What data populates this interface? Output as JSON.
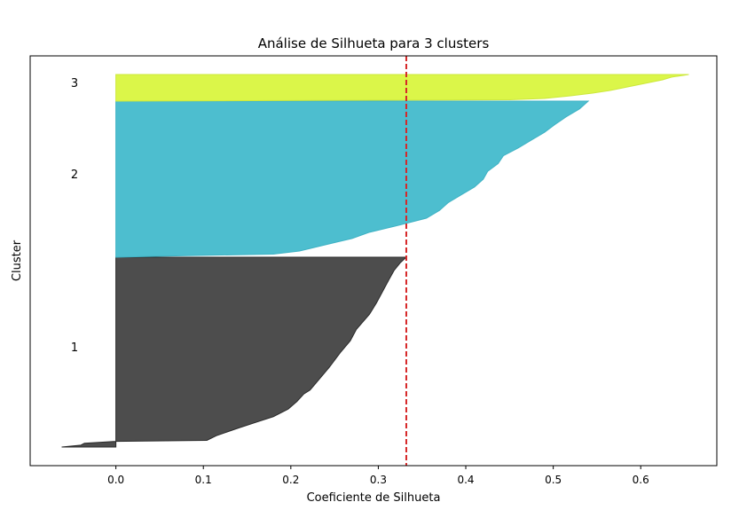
{
  "chart_data": {
    "type": "area",
    "title": "Análise de Silhueta para 3 clusters",
    "xlabel": "Coeficiente de Silhueta",
    "ylabel": "Cluster",
    "xlim": [
      -0.098,
      0.687
    ],
    "x_ticks": [
      0.0,
      0.1,
      0.2,
      0.3,
      0.4,
      0.5,
      0.6
    ],
    "x_tick_labels": [
      "0.0",
      "0.1",
      "0.2",
      "0.3",
      "0.4",
      "0.5",
      "0.6"
    ],
    "grid": false,
    "average_silhouette": 0.332,
    "average_line_color": "#d62728",
    "clusters": [
      {
        "label": "1",
        "color": "#4d4d4d",
        "edge_color": "#2a2a2a",
        "profile": [
          [
            0.0,
            -0.062
          ],
          [
            0.01,
            -0.04
          ],
          [
            0.02,
            -0.036
          ],
          [
            0.03,
            0.0
          ],
          [
            0.035,
            0.104
          ],
          [
            0.06,
            0.115
          ],
          [
            0.1,
            0.14
          ],
          [
            0.13,
            0.16
          ],
          [
            0.16,
            0.18
          ],
          [
            0.2,
            0.197
          ],
          [
            0.24,
            0.207
          ],
          [
            0.28,
            0.215
          ],
          [
            0.3,
            0.222
          ],
          [
            0.36,
            0.233
          ],
          [
            0.42,
            0.244
          ],
          [
            0.5,
            0.257
          ],
          [
            0.56,
            0.268
          ],
          [
            0.62,
            0.275
          ],
          [
            0.7,
            0.29
          ],
          [
            0.76,
            0.298
          ],
          [
            0.82,
            0.305
          ],
          [
            0.88,
            0.312
          ],
          [
            0.93,
            0.318
          ],
          [
            0.97,
            0.325
          ],
          [
            1.0,
            0.332
          ]
        ]
      },
      {
        "label": "2",
        "color": "#4dbecf",
        "edge_color": "#3fb2c4",
        "profile": [
          [
            0.0,
            0.0
          ],
          [
            0.01,
            0.08
          ],
          [
            0.02,
            0.18
          ],
          [
            0.04,
            0.21
          ],
          [
            0.08,
            0.24
          ],
          [
            0.12,
            0.27
          ],
          [
            0.16,
            0.29
          ],
          [
            0.2,
            0.32
          ],
          [
            0.25,
            0.355
          ],
          [
            0.3,
            0.37
          ],
          [
            0.35,
            0.38
          ],
          [
            0.4,
            0.395
          ],
          [
            0.45,
            0.41
          ],
          [
            0.5,
            0.42
          ],
          [
            0.55,
            0.425
          ],
          [
            0.6,
            0.437
          ],
          [
            0.65,
            0.443
          ],
          [
            0.7,
            0.46
          ],
          [
            0.75,
            0.475
          ],
          [
            0.8,
            0.49
          ],
          [
            0.85,
            0.502
          ],
          [
            0.9,
            0.515
          ],
          [
            0.95,
            0.53
          ],
          [
            1.0,
            0.54
          ]
        ]
      },
      {
        "label": "3",
        "color": "#dbf649",
        "edge_color": "#cde83c",
        "profile": [
          [
            0.0,
            0.0
          ],
          [
            0.05,
            0.45
          ],
          [
            0.1,
            0.49
          ],
          [
            0.2,
            0.52
          ],
          [
            0.3,
            0.545
          ],
          [
            0.4,
            0.565
          ],
          [
            0.5,
            0.58
          ],
          [
            0.6,
            0.595
          ],
          [
            0.7,
            0.61
          ],
          [
            0.8,
            0.625
          ],
          [
            0.9,
            0.635
          ],
          [
            1.0,
            0.655
          ]
        ]
      }
    ]
  }
}
